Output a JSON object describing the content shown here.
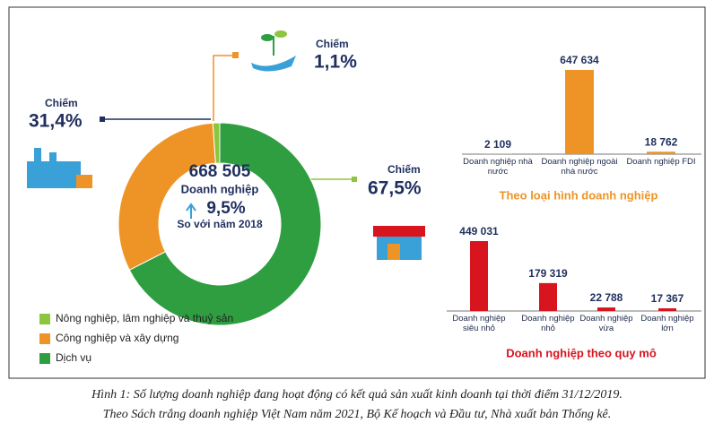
{
  "chart_data": [
    {
      "type": "donut",
      "center_text": [
        "668 505",
        "Doanh nghiệp",
        "9,5%",
        "So với năm 2018"
      ],
      "label_prefix": "Chiếm",
      "categories": [
        "Nông nghiệp, lâm nghiệp và thuỷ sản",
        "Công nghiệp và xây dựng",
        "Dịch vụ"
      ],
      "values": [
        1.1,
        31.4,
        67.5
      ],
      "value_labels": [
        "1,1%",
        "31,4%",
        "67,5%"
      ],
      "colors": [
        "#8cc63f",
        "#ee9426",
        "#2f9e41"
      ],
      "legend": "bottom-left"
    },
    {
      "type": "bar",
      "title": "Theo loại hình doanh nghiệp",
      "categories": [
        "Doanh nghiệp nhà nước",
        "Doanh nghiệp ngoài nhà nước",
        "Doanh nghiệp FDI"
      ],
      "values": [
        2109,
        647634,
        18762
      ],
      "value_labels": [
        "2 109",
        "647 634",
        "18 762"
      ],
      "color": "#ee9426"
    },
    {
      "type": "bar",
      "title": "Doanh nghiệp theo quy mô",
      "categories": [
        "Doanh nghiệp siêu nhỏ",
        "Doanh nghiệp nhỏ",
        "Doanh nghiệp vừa",
        "Doanh nghiệp lớn"
      ],
      "values": [
        449031,
        179319,
        22788,
        17367
      ],
      "value_labels": [
        "449 031",
        "179 319",
        "22 788",
        "17 367"
      ],
      "color": "#d8141f"
    }
  ],
  "caption": [
    "Hình 1: Số lượng doanh nghiệp đang hoạt động có kết quả sản xuất kinh doanh tại thời điểm 31/12/2019.",
    "Theo Sách trắng doanh nghiệp Việt Nam năm 2021, Bộ Kế hoạch và Đầu tư, Nhà xuất bản Thống kê."
  ]
}
